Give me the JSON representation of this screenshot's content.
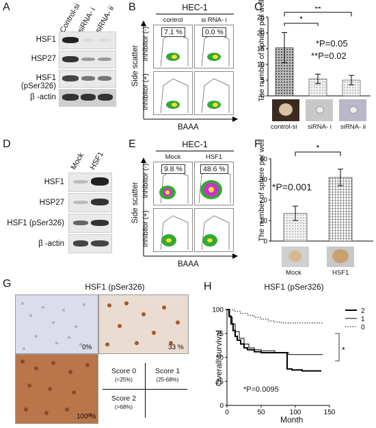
{
  "panels": {
    "A": {
      "letter": "A",
      "lanes": [
        "Control-si",
        "siRNA- i",
        "siRNA- ii"
      ],
      "rows": [
        "HSF1",
        "HSP27",
        "HSF1 (pSer326)",
        "β -actin"
      ]
    },
    "B": {
      "letter": "B",
      "title": "HEC-1",
      "columns": [
        "control siRNA",
        "si RNA- i"
      ],
      "percents": [
        "7.1 %",
        "0.0 %"
      ],
      "row_labels": [
        "Inhibitor (-)",
        "Inhibitor (+)"
      ],
      "y_label": "Side scatter",
      "x_label": "BAAA"
    },
    "C": {
      "letter": "C",
      "chart_data": {
        "type": "bar",
        "categories": [
          "control-si",
          "siRNA- i",
          "siRNA- ii"
        ],
        "values": [
          15.3,
          5.4,
          5.0
        ],
        "errors": [
          4.8,
          1.5,
          1.5
        ],
        "ylabel": "The number of sphere per well",
        "ylim": [
          0,
          25
        ],
        "yticks": [
          0,
          5,
          10,
          15,
          20,
          25
        ],
        "sig_single": "*",
        "sig_double": "**",
        "p_line1": "*P=0.05",
        "p_line2": "**P=0.02"
      }
    },
    "D": {
      "letter": "D",
      "lanes": [
        "Mock",
        "HSF1"
      ],
      "rows": [
        "HSF1",
        "HSP27",
        "HSF1 (pSer326)",
        "β -actin"
      ]
    },
    "E": {
      "letter": "E",
      "title": "HEC-1",
      "columns": [
        "Mock",
        "HSF1"
      ],
      "percents": [
        "9.8 %",
        "48.6 %"
      ],
      "row_labels": [
        "Inhibitor (-)",
        "Inhibitor (+)"
      ],
      "y_label": "Side scatter",
      "x_label": "BAAA"
    },
    "F": {
      "letter": "F",
      "chart_data": {
        "type": "bar",
        "categories": [
          "Mock",
          "HSF1"
        ],
        "values": [
          13.5,
          31
        ],
        "errors": [
          3.5,
          4
        ],
        "ylabel": "The number of sphere per well",
        "ylim": [
          0,
          40
        ],
        "yticks": [
          0,
          10,
          20,
          30,
          40
        ],
        "sig": "*",
        "p_text": "*P=0.001"
      }
    },
    "G": {
      "letter": "G",
      "title": "HSF1 (pSer326)",
      "percents": [
        "0%",
        "33 %",
        "100 %"
      ],
      "scores": [
        {
          "name": "Score 0",
          "range": "(<25%)"
        },
        {
          "name": "Score 1",
          "range": "(25-68%)"
        },
        {
          "name": "Score 2",
          "range": "(>68%)"
        }
      ]
    },
    "H": {
      "letter": "H",
      "chart_data": {
        "type": "line",
        "title": "HSF1 (pSer326)",
        "xlabel": "Month",
        "ylabel": "Overall survival",
        "xlim": [
          0,
          150
        ],
        "ylim": [
          0,
          100
        ],
        "xticks": [
          0,
          50,
          100,
          150
        ],
        "yticks": [
          0,
          25,
          50,
          75,
          100
        ],
        "series": [
          {
            "name": "2",
            "style": "solid-thick",
            "x": [
              0,
              3,
              6,
              9,
              12,
              15,
              20,
              25,
              30,
              40,
              50,
              60,
              70,
              80,
              88,
              95,
              110,
              125,
              138
            ],
            "y": [
              100,
              93,
              85,
              78,
              72,
              68,
              64,
              60,
              58,
              56,
              55,
              55,
              55,
              55,
              38,
              37,
              36,
              36,
              36
            ]
          },
          {
            "name": "1",
            "style": "solid-thin",
            "x": [
              0,
              4,
              8,
              12,
              18,
              25,
              32,
              40,
              50,
              60,
              70,
              80,
              90,
              100,
              115,
              130,
              140
            ],
            "y": [
              100,
              92,
              85,
              77,
              70,
              64,
              60,
              58,
              57,
              57,
              55,
              55,
              53,
              53,
              53,
              53,
              53
            ]
          },
          {
            "name": "0",
            "style": "dotted",
            "x": [
              0,
              10,
              20,
              30,
              40,
              50,
              60,
              70,
              80,
              95,
              110,
              125,
              140
            ],
            "y": [
              100,
              98,
              96,
              94,
              92,
              90,
              88,
              87,
              86,
              86,
              86,
              86,
              86
            ]
          }
        ],
        "sig": "*",
        "p_text": "*P=0.0095"
      }
    }
  }
}
